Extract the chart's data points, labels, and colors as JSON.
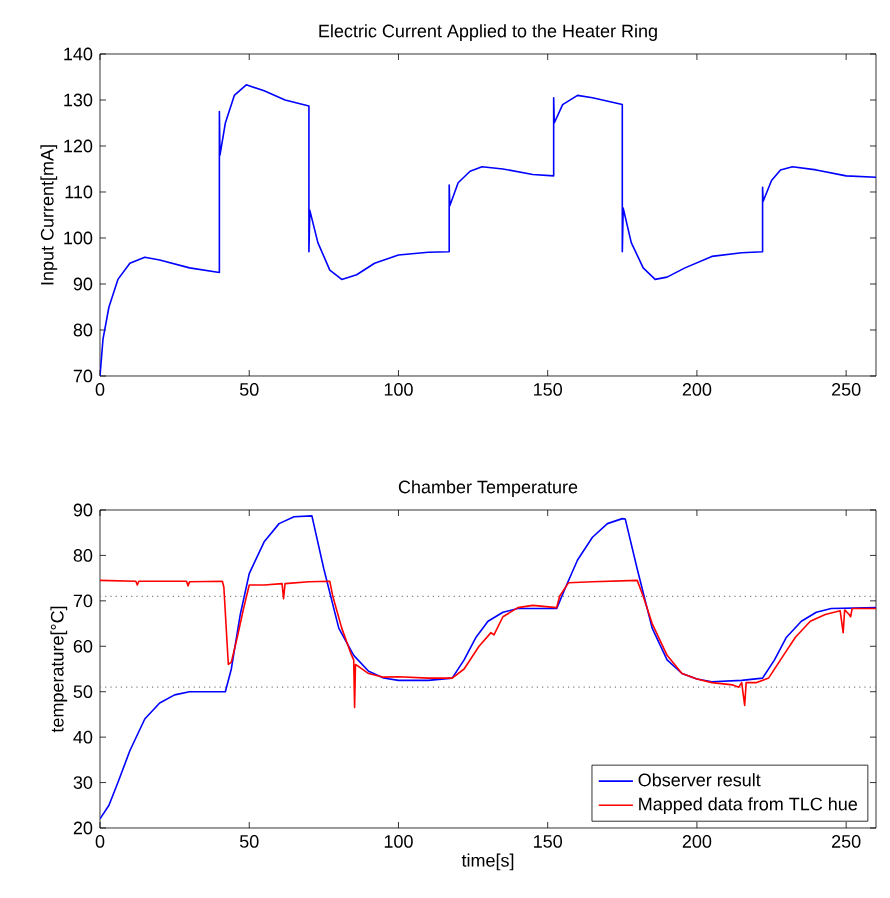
{
  "chart_data": [
    {
      "type": "line",
      "title": "Electric Current Applied to the Heater Ring",
      "ylabel": "Input Current[mA]",
      "xlim": [
        0,
        260
      ],
      "ylim": [
        70,
        140
      ],
      "xticks": [
        0,
        50,
        100,
        150,
        200,
        250
      ],
      "yticks": [
        70,
        80,
        90,
        100,
        110,
        120,
        130,
        140
      ],
      "grid": false,
      "legend": false,
      "series": [
        {
          "color": "#0000ff",
          "x": [
            0,
            1,
            3,
            6,
            10,
            15,
            20,
            30,
            40,
            40,
            40.2,
            42,
            45,
            49,
            55,
            62,
            70,
            70,
            70.3,
            73,
            77,
            81,
            86,
            92,
            100,
            110,
            117,
            117,
            117.2,
            120,
            124,
            128,
            135,
            145,
            152,
            152,
            152.2,
            155,
            160,
            165,
            175,
            175,
            175.3,
            178,
            182,
            186,
            190,
            196,
            205,
            215,
            222,
            222,
            222.2,
            225,
            228,
            232,
            240,
            250,
            260
          ],
          "values": [
            70,
            78,
            85,
            91,
            94.5,
            95.8,
            95.2,
            93.5,
            92.5,
            127.5,
            118,
            125,
            131,
            133.3,
            132,
            130,
            128.7,
            97,
            106,
            99,
            93,
            91,
            92,
            94.5,
            96.3,
            96.9,
            97,
            111.5,
            107,
            112,
            114.5,
            115.5,
            115,
            113.8,
            113.5,
            130.5,
            125,
            129,
            131,
            130.5,
            129,
            97,
            106.5,
            99,
            93.5,
            91,
            91.5,
            93.5,
            96,
            96.8,
            97,
            111,
            108,
            112.5,
            114.8,
            115.5,
            114.8,
            113.5,
            113.2
          ]
        }
      ]
    },
    {
      "type": "line",
      "title": "Chamber Temperature",
      "xlabel": "time[s]",
      "ylabel": "temperature[°C]",
      "xlim": [
        0,
        260
      ],
      "ylim": [
        20,
        90
      ],
      "xticks": [
        0,
        50,
        100,
        150,
        200,
        250
      ],
      "yticks": [
        20,
        30,
        40,
        50,
        60,
        70,
        80,
        90
      ],
      "grid": false,
      "legend": "bottom right",
      "ref_lines": [
        {
          "axis": "y",
          "value": 71,
          "color": "#808080",
          "line_style": "dotted"
        },
        {
          "axis": "y",
          "value": 51,
          "color": "#808080",
          "line_style": "dotted"
        }
      ],
      "series": [
        {
          "name": "Observer result",
          "color": "#0000ff",
          "x": [
            0,
            3,
            6,
            10,
            15,
            20,
            25,
            30,
            42,
            44,
            47,
            50,
            55,
            60,
            65,
            71,
            75,
            80,
            85,
            90,
            95,
            100,
            110,
            118,
            122,
            126,
            130,
            135,
            140,
            153,
            156,
            160,
            165,
            170,
            175,
            176,
            180,
            185,
            190,
            195,
            200,
            205,
            215,
            222,
            226,
            230,
            235,
            240,
            245,
            260
          ],
          "values": [
            22,
            25,
            30,
            37,
            44,
            47.5,
            49.3,
            50,
            50,
            55,
            67,
            76,
            83,
            87,
            88.5,
            88.7,
            77,
            64,
            58,
            54.5,
            53,
            52.5,
            52.5,
            53,
            57,
            62,
            65.5,
            67.5,
            68.3,
            68.3,
            73,
            79,
            84,
            87,
            88.1,
            88,
            77,
            64,
            57,
            54,
            52.8,
            52.2,
            52.5,
            53,
            57,
            62,
            65.5,
            67.5,
            68.3,
            68.5
          ]
        },
        {
          "name": "Mapped data from TLC hue",
          "color": "#ff0000",
          "x": [
            0,
            12,
            12.5,
            13,
            29,
            29.5,
            30,
            41,
            41.5,
            43,
            44,
            46,
            48,
            50,
            55,
            61,
            61.5,
            62,
            70,
            77,
            78,
            81,
            84,
            85,
            85.3,
            85.6,
            90,
            95,
            100,
            110,
            118,
            122,
            127,
            131,
            132,
            135,
            140,
            145,
            153,
            154,
            157,
            165,
            180,
            182,
            185,
            190,
            195,
            200,
            205,
            212,
            214,
            215,
            216,
            216.5,
            220,
            224,
            228,
            233,
            238,
            243,
            248,
            249,
            249.5,
            251,
            251.5,
            252,
            260
          ],
          "values": [
            74.5,
            74.3,
            73.5,
            74.3,
            74.3,
            73.3,
            74.2,
            74.3,
            73,
            56,
            56.5,
            62,
            68,
            73.5,
            73.5,
            73.8,
            70.5,
            73.8,
            74.2,
            74.3,
            71,
            64,
            58.5,
            57,
            46.5,
            56,
            54,
            53.2,
            53.3,
            53,
            53,
            55,
            60,
            63,
            62.5,
            66.5,
            68.5,
            69,
            68.5,
            71,
            74,
            74.2,
            74.5,
            71,
            65,
            58,
            54,
            52.8,
            52,
            51.5,
            51,
            52,
            47,
            52,
            52,
            53,
            57,
            62,
            65.5,
            67,
            67.8,
            63,
            68,
            67,
            66.5,
            68.3,
            68.3
          ]
        }
      ]
    }
  ]
}
